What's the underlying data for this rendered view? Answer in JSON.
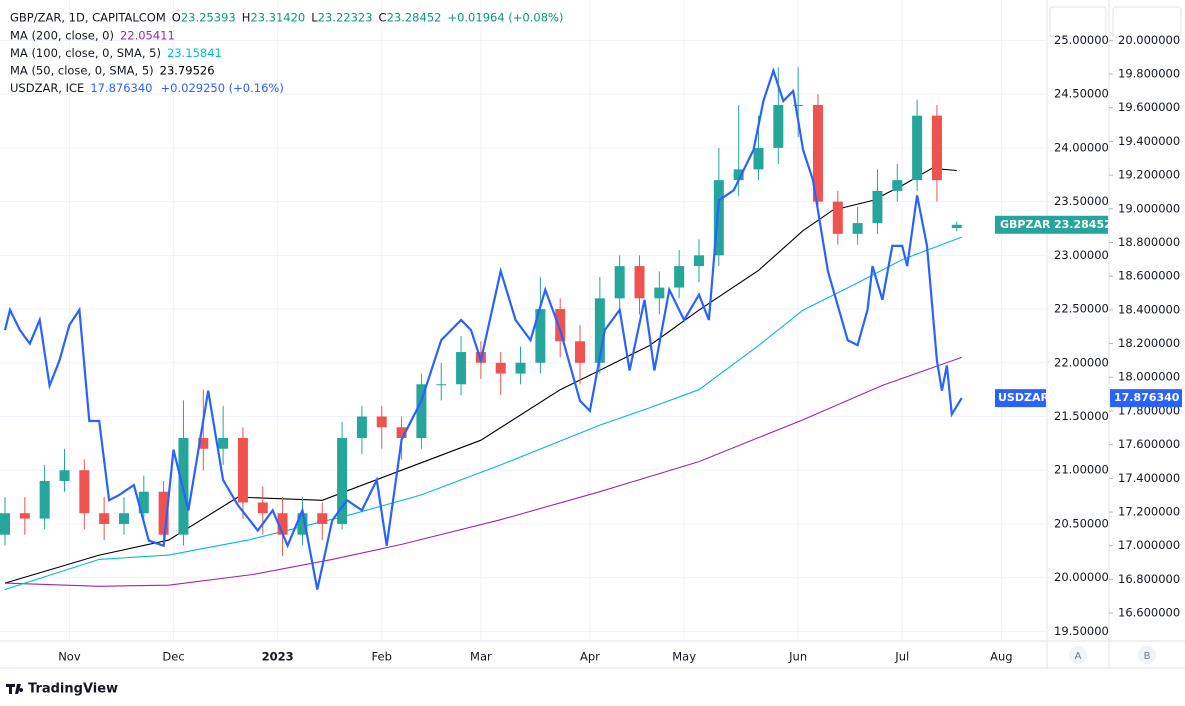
{
  "chart_data": {
    "type": "candlestick",
    "title": "GBP/ZAR, 1D, CAPITALCOM",
    "ohlc_legend": [
      {
        "key": "O",
        "text": "23.25393"
      },
      {
        "key": "H",
        "text": "23.31420"
      },
      {
        "key": "L",
        "text": "23.22323"
      },
      {
        "key": "C",
        "text": "23.28452"
      }
    ],
    "change": "+0.01964 (+0.08%)",
    "xlim": [
      0,
      210
    ],
    "xticks": [
      {
        "value": 13,
        "label": "Nov"
      },
      {
        "value": 34,
        "label": "Dec"
      },
      {
        "value": 55,
        "label": "2023"
      },
      {
        "value": 76,
        "label": "Feb"
      },
      {
        "value": 96,
        "label": "Mar"
      },
      {
        "value": 118,
        "label": "Apr"
      },
      {
        "value": 137,
        "label": "May"
      },
      {
        "value": 160,
        "label": "Jun"
      },
      {
        "value": 181,
        "label": "Jul"
      },
      {
        "value": 201,
        "label": "Aug"
      }
    ],
    "ylim": [
      19.42,
      25.33
    ],
    "yticks": [
      {
        "value": 19.5,
        "label": "19.50000"
      },
      {
        "value": 20,
        "label": "20.00000"
      },
      {
        "value": 20.5,
        "label": "20.50000"
      },
      {
        "value": 21,
        "label": "21.00000"
      },
      {
        "value": 21.5,
        "label": "21.50000"
      },
      {
        "value": 22,
        "label": "22.00000"
      },
      {
        "value": 22.5,
        "label": "22.50000"
      },
      {
        "value": 23,
        "label": "23.00000"
      },
      {
        "value": 23.5,
        "label": "23.50000"
      },
      {
        "value": 24,
        "label": "24.00000"
      },
      {
        "value": 24.5,
        "label": "24.50000"
      },
      {
        "value": 25,
        "label": "25.00000"
      }
    ],
    "y2lim": [
      16.44,
      20.21
    ],
    "y2ticks": [
      {
        "value": 16.6,
        "label": "16.600000"
      },
      {
        "value": 16.8,
        "label": "16.800000"
      },
      {
        "value": 17,
        "label": "17.000000"
      },
      {
        "value": 17.2,
        "label": "17.200000"
      },
      {
        "value": 17.4,
        "label": "17.400000"
      },
      {
        "value": 17.6,
        "label": "17.600000"
      },
      {
        "value": 17.8,
        "label": "17.800000"
      },
      {
        "value": 18,
        "label": "18.000000"
      },
      {
        "value": 18.2,
        "label": "18.200000"
      },
      {
        "value": 18.4,
        "label": "18.400000"
      },
      {
        "value": 18.6,
        "label": "18.600000"
      },
      {
        "value": 18.8,
        "label": "18.800000"
      },
      {
        "value": 19,
        "label": "19.000000"
      },
      {
        "value": 19.2,
        "label": "19.200000"
      },
      {
        "value": 19.4,
        "label": "19.400000"
      },
      {
        "value": 19.6,
        "label": "19.600000"
      },
      {
        "value": 19.8,
        "label": "19.800000"
      },
      {
        "value": 20,
        "label": "20.000000"
      }
    ],
    "grid": true,
    "series": [
      {
        "name": "GBPZAR",
        "type": "candlestick",
        "up_color": "#26a69a",
        "down_color": "#ef5350",
        "tag_color": "#26a69a",
        "tag_label": "23.28452",
        "x": [
          0,
          4,
          8,
          12,
          16,
          20,
          24,
          28,
          32,
          36,
          40,
          44,
          48,
          52,
          56,
          60,
          64,
          68,
          72,
          76,
          80,
          84,
          88,
          92,
          96,
          100,
          104,
          108,
          112,
          116,
          120,
          124,
          128,
          132,
          136,
          140,
          144,
          148,
          152,
          156,
          160,
          164,
          168,
          172,
          176,
          180,
          184,
          188,
          192
        ],
        "open": [
          20.4,
          20.6,
          20.55,
          20.9,
          21.0,
          20.6,
          20.5,
          20.6,
          20.8,
          20.4,
          21.3,
          21.2,
          21.3,
          20.7,
          20.6,
          20.4,
          20.6,
          20.5,
          21.3,
          21.5,
          21.4,
          21.3,
          21.8,
          21.8,
          22.1,
          22.0,
          21.9,
          22.0,
          22.5,
          22.2,
          22.0,
          22.6,
          22.9,
          22.6,
          22.7,
          22.9,
          23.0,
          23.7,
          23.8,
          24.0,
          24.4,
          24.4,
          23.5,
          23.2,
          23.3,
          23.6,
          23.7,
          24.3,
          23.25393
        ],
        "high": [
          20.75,
          20.75,
          21.05,
          21.2,
          21.1,
          20.75,
          20.75,
          20.95,
          20.9,
          21.65,
          21.75,
          21.6,
          21.4,
          20.85,
          20.75,
          20.75,
          20.7,
          21.45,
          21.6,
          21.6,
          21.5,
          21.9,
          22.0,
          22.25,
          22.2,
          22.1,
          22.15,
          22.8,
          22.6,
          22.35,
          22.8,
          23.0,
          23.0,
          22.85,
          23.05,
          23.15,
          24.0,
          24.4,
          24.3,
          24.75,
          24.75,
          24.5,
          23.6,
          23.45,
          23.8,
          23.85,
          24.45,
          24.4,
          23.3142
        ],
        "low": [
          20.3,
          20.4,
          20.45,
          20.8,
          20.45,
          20.35,
          20.4,
          20.5,
          20.3,
          20.3,
          21.0,
          21.05,
          20.55,
          20.4,
          20.2,
          20.3,
          20.35,
          20.45,
          21.15,
          21.2,
          21.1,
          21.2,
          21.65,
          21.7,
          21.85,
          21.7,
          21.8,
          21.9,
          22.05,
          21.8,
          21.9,
          22.5,
          22.45,
          22.45,
          22.6,
          22.75,
          22.9,
          23.55,
          23.7,
          23.85,
          24.1,
          23.4,
          23.1,
          23.1,
          23.2,
          23.5,
          23.6,
          23.5,
          23.22323
        ],
        "close": [
          20.6,
          20.55,
          20.9,
          21.0,
          20.6,
          20.5,
          20.6,
          20.8,
          20.4,
          21.3,
          21.2,
          21.3,
          20.7,
          20.6,
          20.4,
          20.6,
          20.5,
          21.3,
          21.5,
          21.4,
          21.3,
          21.8,
          21.8,
          22.1,
          22.0,
          21.9,
          22.0,
          22.5,
          22.2,
          22.0,
          22.6,
          22.9,
          22.6,
          22.7,
          22.9,
          23.0,
          23.7,
          23.8,
          24.0,
          24.4,
          24.4,
          23.5,
          23.2,
          23.3,
          23.6,
          23.7,
          24.3,
          23.7,
          23.28452
        ]
      },
      {
        "name": "MA (200, close, 0)",
        "type": "line",
        "color": "#9c27b0",
        "legend_value": "22.05411",
        "x": [
          0,
          19,
          33,
          50,
          66,
          80,
          100,
          120,
          140,
          161,
          177,
          193
        ],
        "values": [
          19.95,
          19.92,
          19.93,
          20.03,
          20.17,
          20.31,
          20.54,
          20.8,
          21.08,
          21.47,
          21.79,
          22.05
        ]
      },
      {
        "name": "MA (100, close, 0, SMA, 5)",
        "type": "line",
        "color": "#00bcd4",
        "legend_value": "23.15841",
        "x": [
          0,
          19,
          33,
          49,
          70,
          84,
          100,
          120,
          130,
          140,
          152,
          161,
          171,
          181,
          193
        ],
        "values": [
          19.89,
          20.17,
          20.21,
          20.35,
          20.59,
          20.77,
          21.05,
          21.42,
          21.58,
          21.75,
          22.16,
          22.49,
          22.72,
          22.96,
          23.17
        ]
      },
      {
        "name": "MA (50, close, 0, SMA, 5)",
        "type": "line",
        "color": "#000000",
        "legend_value": "23.79526",
        "x": [
          0,
          19,
          33,
          47,
          64,
          80,
          96,
          112,
          120,
          130,
          140,
          152,
          161,
          167,
          175,
          181,
          187,
          192
        ],
        "values": [
          19.95,
          20.21,
          20.35,
          20.75,
          20.72,
          21.0,
          21.28,
          21.75,
          21.93,
          22.16,
          22.49,
          22.86,
          23.23,
          23.42,
          23.51,
          23.65,
          23.81,
          23.79
        ]
      },
      {
        "name": "USDZAR, ICE",
        "type": "line",
        "axis": "y2",
        "color": "#2962ff",
        "legend_value": "17.876340",
        "legend_change": "+0.029250 (+0.16%)",
        "tag": "USDZAR",
        "tag_label": "17.876340",
        "x": [
          0,
          1,
          3,
          5,
          7,
          9,
          11,
          13,
          15,
          17,
          19,
          21,
          23,
          26,
          29,
          32,
          34,
          37,
          41,
          44,
          47,
          51,
          54,
          57,
          60,
          63,
          66,
          69,
          72,
          75,
          77,
          80,
          84,
          88,
          92,
          94,
          96,
          100,
          103,
          106,
          109,
          112,
          116,
          118,
          121,
          124,
          126,
          129,
          131,
          134,
          137,
          140,
          142,
          144,
          147,
          151,
          153,
          155,
          157,
          159,
          161,
          163,
          166,
          170,
          172,
          174,
          175,
          177,
          179,
          181,
          182,
          184,
          186,
          188,
          189,
          190,
          191,
          193
        ],
        "values": [
          18.28,
          18.4,
          18.28,
          18.2,
          18.34,
          17.95,
          18.1,
          18.31,
          18.4,
          17.74,
          17.74,
          17.27,
          17.3,
          17.36,
          17.03,
          17.0,
          17.57,
          17.21,
          17.92,
          17.39,
          17.24,
          17.09,
          17.21,
          17.0,
          17.21,
          16.74,
          17.15,
          17.27,
          17.21,
          17.39,
          17.0,
          17.63,
          17.86,
          18.22,
          18.34,
          18.28,
          18.1,
          18.63,
          18.34,
          18.22,
          18.52,
          18.28,
          17.86,
          17.8,
          18.28,
          18.4,
          18.04,
          18.46,
          18.04,
          18.52,
          18.34,
          18.49,
          18.34,
          19.05,
          19.11,
          19.35,
          19.64,
          19.82,
          19.64,
          19.7,
          19.35,
          19.17,
          18.63,
          18.22,
          18.19,
          18.4,
          18.66,
          18.46,
          18.78,
          18.78,
          18.66,
          19.08,
          18.78,
          18.1,
          17.92,
          18.07,
          17.78,
          17.876
        ]
      }
    ],
    "candle_tag": "GBPZAR",
    "scale_buttons": [
      "A",
      "B"
    ],
    "brand": "TradingView"
  }
}
